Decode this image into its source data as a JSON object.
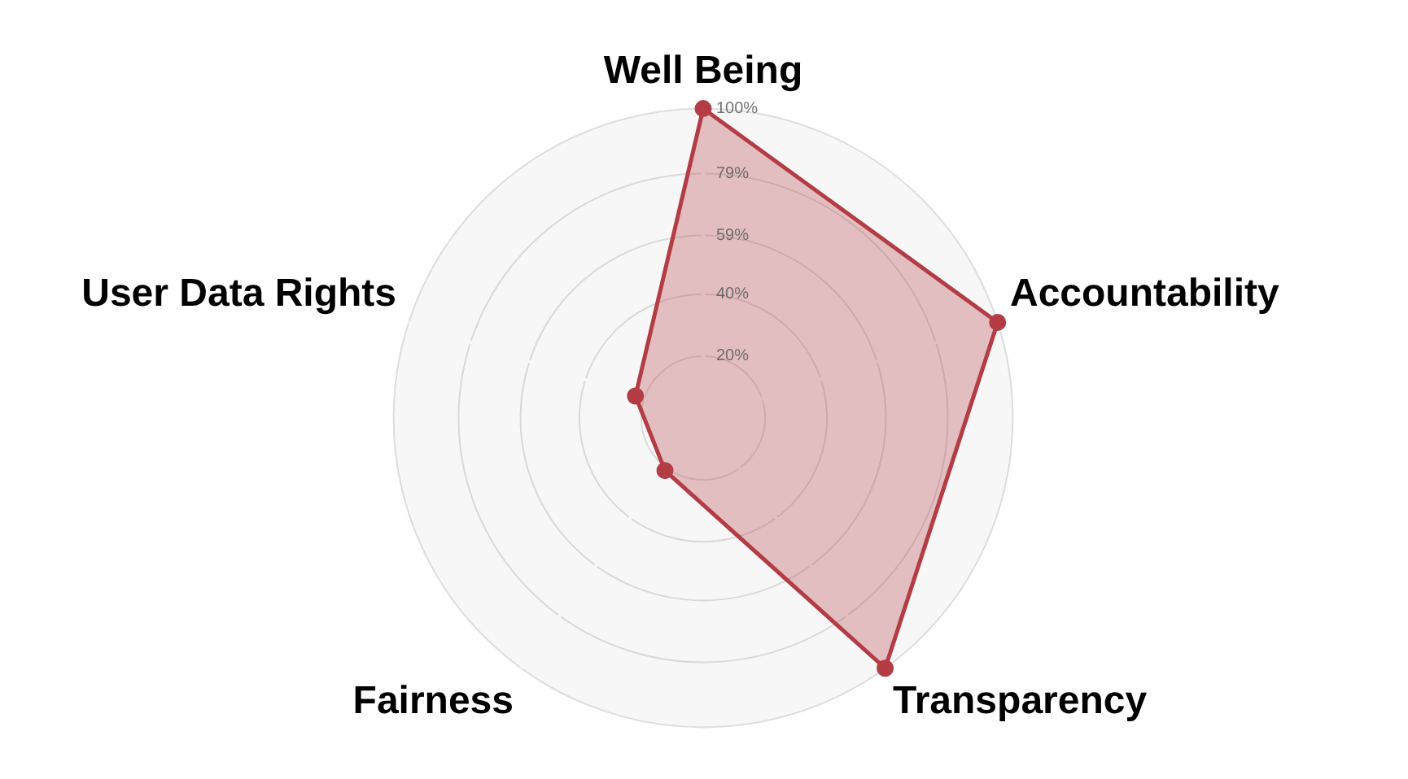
{
  "chart_data": {
    "type": "radar",
    "categories": [
      "Well Being",
      "Accountability",
      "Transparency",
      "Fairness",
      "User Data Rights"
    ],
    "series": [
      {
        "color": "#b33c45",
        "values": [
          100,
          100,
          100,
          21,
          23
        ]
      }
    ],
    "ylim": [
      0,
      100
    ],
    "yticks": [
      {
        "value": 20,
        "label": "20%"
      },
      {
        "value": 40,
        "label": "40%"
      },
      {
        "value": 59,
        "label": "59%"
      },
      {
        "value": 79,
        "label": "79%"
      },
      {
        "value": 100,
        "label": "100%"
      }
    ],
    "grid": true,
    "legend": false,
    "marker": "circle",
    "line_style": "solid"
  }
}
